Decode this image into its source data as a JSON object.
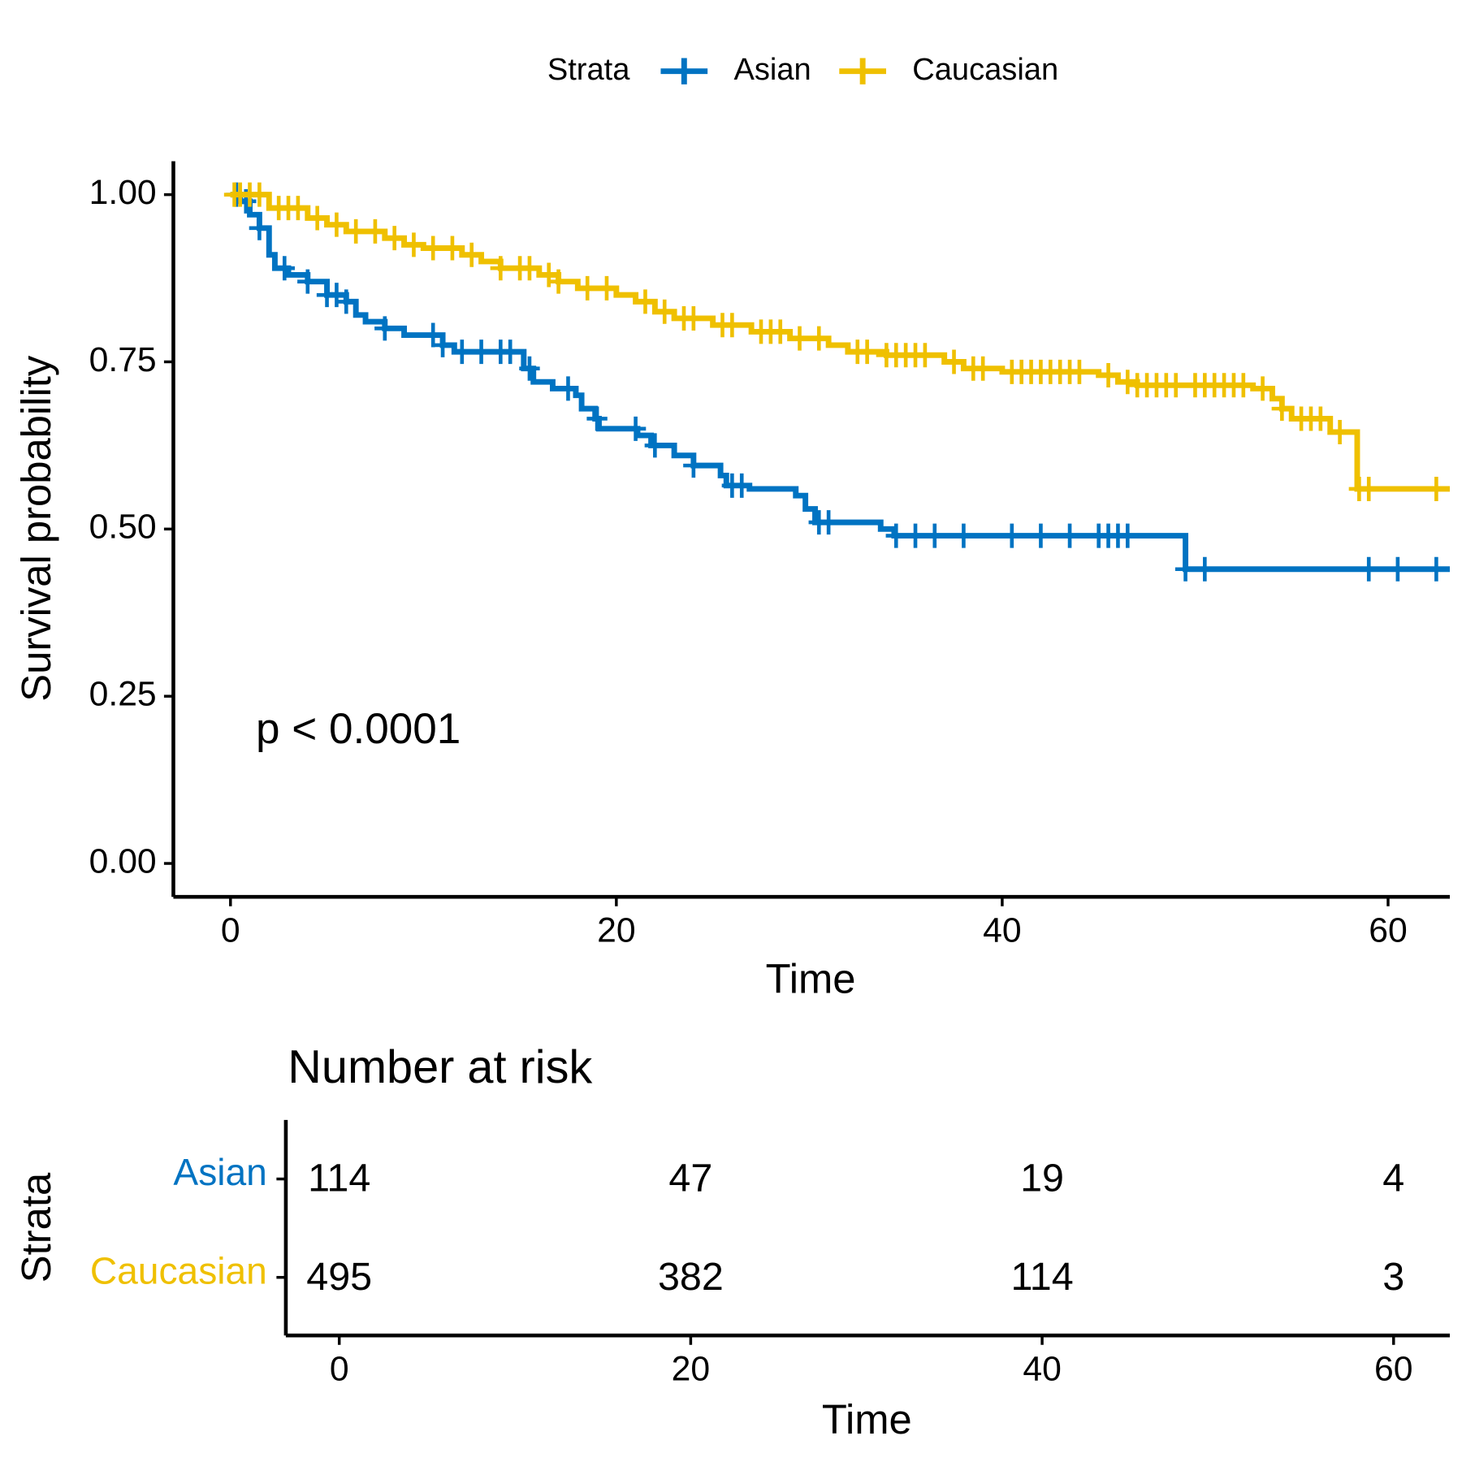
{
  "chart_data": [
    {
      "type": "km",
      "legend_title": "Strata",
      "legend_position": "top",
      "xlabel": "Time",
      "ylabel": "Survival probability",
      "annotation": "p < 0.0001",
      "xlim": [
        -2.96,
        63.2
      ],
      "ylim": [
        -0.05,
        1.05
      ],
      "xticks": [
        0,
        20,
        40,
        60
      ],
      "yticks": [
        {
          "value": 0,
          "label": "0.00"
        },
        {
          "value": 0.25,
          "label": "0.25"
        },
        {
          "value": 0.5,
          "label": "0.50"
        },
        {
          "value": 0.75,
          "label": "0.75"
        },
        {
          "value": 1,
          "label": "1.00"
        }
      ],
      "series": [
        {
          "name": "Asian",
          "color": "#0073C2",
          "x": [
            0,
            0.5,
            1,
            1.5,
            2,
            2.3,
            3,
            4,
            5,
            6,
            6.5,
            7,
            8,
            9,
            11,
            11.6,
            15.2,
            15.7,
            16.7,
            17.9,
            18.2,
            18.9,
            19.1,
            21.1,
            21.8,
            23,
            24,
            25.4,
            25.7,
            26.9,
            29.3,
            29.8,
            30.3,
            33.7,
            34.4,
            49.5,
            63.2
          ],
          "values": [
            1,
            0.99,
            0.97,
            0.95,
            0.91,
            0.89,
            0.88,
            0.87,
            0.85,
            0.84,
            0.82,
            0.81,
            0.8,
            0.79,
            0.775,
            0.765,
            0.74,
            0.72,
            0.71,
            0.7,
            0.68,
            0.665,
            0.65,
            0.64,
            0.625,
            0.61,
            0.595,
            0.58,
            0.565,
            0.56,
            0.55,
            0.53,
            0.51,
            0.5,
            0.49,
            0.44,
            0.44
          ],
          "censored": [
            0.3,
            0.8,
            1.5,
            2.8,
            4,
            5,
            5.5,
            6,
            8,
            10.5,
            11,
            12,
            13,
            14,
            14.5,
            15.5,
            17.5,
            19,
            21,
            22,
            24,
            26,
            26.5,
            30.5,
            31,
            34.5,
            35.5,
            36.5,
            38,
            40.5,
            42,
            43.5,
            45,
            45.5,
            46,
            46.5,
            49.5,
            50.5,
            59,
            60.5,
            62.5
          ]
        },
        {
          "name": "Caucasian",
          "color": "#EFC000",
          "x": [
            0,
            2,
            4,
            5,
            6,
            8,
            9,
            10,
            12,
            13,
            14,
            16,
            17,
            18,
            20,
            21,
            22,
            23,
            25,
            27,
            29,
            31,
            32,
            34,
            37,
            38,
            40,
            45,
            46,
            47,
            53,
            54,
            54.5,
            55,
            57,
            58.4,
            63.2
          ],
          "values": [
            1,
            0.98,
            0.965,
            0.955,
            0.945,
            0.935,
            0.925,
            0.92,
            0.91,
            0.9,
            0.89,
            0.88,
            0.87,
            0.86,
            0.85,
            0.84,
            0.825,
            0.815,
            0.805,
            0.795,
            0.785,
            0.775,
            0.765,
            0.76,
            0.75,
            0.74,
            0.735,
            0.73,
            0.72,
            0.715,
            0.71,
            0.695,
            0.68,
            0.665,
            0.645,
            0.56,
            0.56
          ],
          "censored": [
            0.2,
            0.5,
            1,
            1.5,
            2.5,
            3,
            3.5,
            4.5,
            5.5,
            6.5,
            7.5,
            8.5,
            9.5,
            10.5,
            11.5,
            12.5,
            14,
            15,
            15.5,
            16.5,
            17,
            18.5,
            19.5,
            21.5,
            22.5,
            23.5,
            24,
            25.5,
            26,
            27.5,
            28,
            28.5,
            29.5,
            30.5,
            32.5,
            33,
            34,
            34.5,
            35,
            35.5,
            36,
            37.5,
            38.5,
            39,
            40.5,
            41,
            41.5,
            42,
            42.5,
            43,
            43.5,
            44,
            45.5,
            46.5,
            47,
            47.5,
            48,
            48.5,
            49,
            50,
            50.5,
            51,
            51.5,
            52,
            52.5,
            53.5,
            54.5,
            55.5,
            56,
            56.5,
            57.5,
            58.5,
            59,
            62.5
          ]
        }
      ]
    },
    {
      "type": "risk_table",
      "title": "Number at risk",
      "xlabel": "Time",
      "ylabel": "Strata",
      "xlim": [
        -3.04,
        63.2
      ],
      "xticks": [
        0,
        20,
        40,
        60
      ],
      "x": [
        0,
        20,
        40,
        60
      ],
      "series": [
        {
          "name": "Asian",
          "color": "#0073C2",
          "values": [
            114,
            47,
            19,
            4
          ]
        },
        {
          "name": "Caucasian",
          "color": "#EFC000",
          "values": [
            495,
            382,
            114,
            3
          ]
        }
      ]
    }
  ]
}
